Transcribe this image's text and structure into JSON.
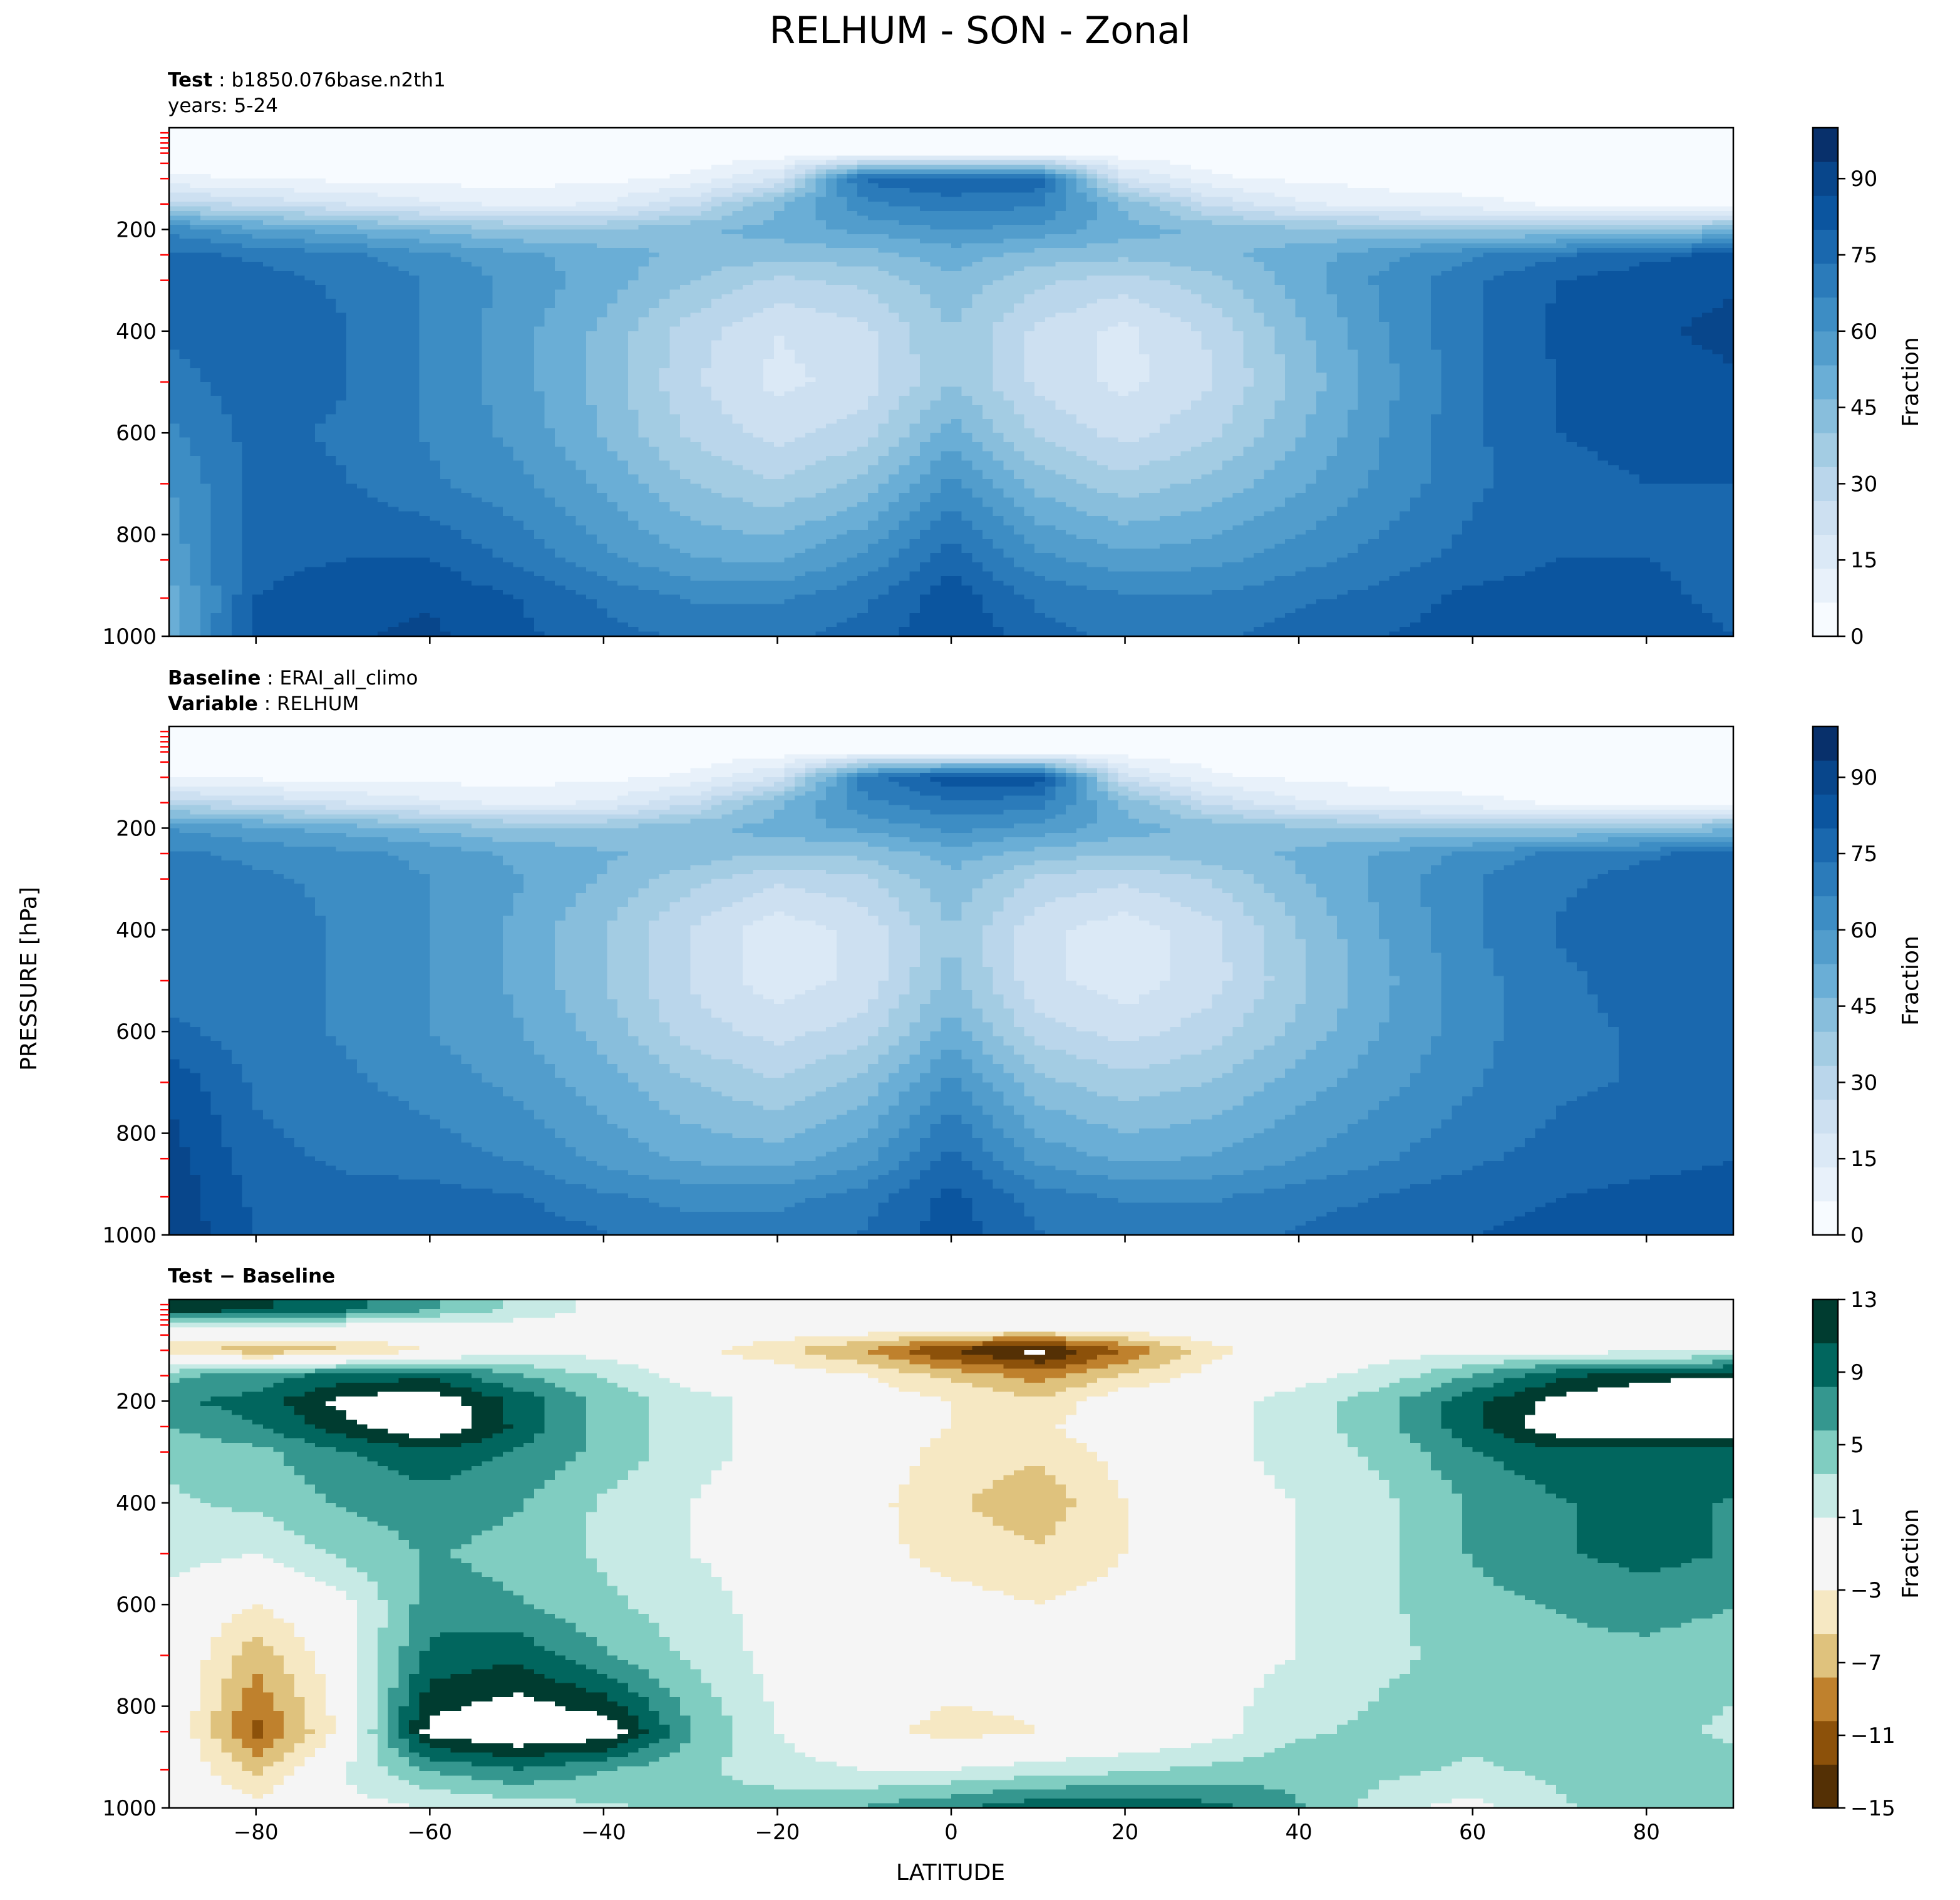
{
  "title": "RELHUM - SON - Zonal",
  "ylabel": "PRESSURE [hPa]",
  "xlabel": "LATITUDE",
  "colors": {
    "blues": [
      "#f7fbff",
      "#e8f1fa",
      "#dbe9f6",
      "#cde0f1",
      "#bad6eb",
      "#a3cce3",
      "#88bedc",
      "#6aaed6",
      "#529dcc",
      "#3d8dc4",
      "#2b7bba",
      "#1a68ae",
      "#0b559f",
      "#08468b",
      "#08306b"
    ],
    "brbg": [
      "#543005",
      "#8c510a",
      "#bf812d",
      "#dfc27d",
      "#f6e8c3",
      "#f5f5f5",
      "#c7eae5",
      "#80cdc1",
      "#35978f",
      "#01665e",
      "#003c30"
    ]
  },
  "chart_data": [
    {
      "type": "heatmap",
      "panel": "test",
      "label_key": "Test",
      "label_value": "b1850.076base.n2th1",
      "label_line2": "years: 5-24",
      "x_range": [
        -90,
        90
      ],
      "y_range": [
        1000,
        0
      ],
      "yticks": [
        200,
        400,
        600,
        800,
        1000
      ],
      "xticks": [
        -80,
        -60,
        -40,
        -20,
        0,
        20,
        40,
        60,
        80
      ],
      "show_xtick_labels": false,
      "colorbar": {
        "label": "Fraction",
        "range": [
          0,
          100
        ],
        "ticks": [
          0,
          15,
          30,
          45,
          60,
          75,
          90
        ]
      },
      "data_fields": {
        "lat": [
          -90,
          -80,
          -70,
          -60,
          -50,
          -40,
          -30,
          -20,
          -10,
          0,
          10,
          20,
          30,
          40,
          50,
          60,
          70,
          80,
          90
        ],
        "pressure": [
          50,
          100,
          150,
          200,
          250,
          300,
          400,
          500,
          600,
          700,
          850,
          925,
          1000
        ],
        "values": [
          [
            2,
            2,
            2,
            2,
            2,
            2,
            2,
            3,
            3,
            3,
            3,
            3,
            2,
            2,
            2,
            2,
            2,
            2,
            2
          ],
          [
            8,
            6,
            5,
            4,
            4,
            5,
            8,
            20,
            75,
            80,
            78,
            20,
            8,
            5,
            4,
            4,
            3,
            3,
            3
          ],
          [
            30,
            25,
            20,
            15,
            12,
            14,
            25,
            45,
            65,
            70,
            68,
            45,
            25,
            15,
            10,
            8,
            6,
            5,
            5
          ],
          [
            65,
            55,
            50,
            45,
            40,
            40,
            45,
            50,
            55,
            60,
            58,
            50,
            45,
            42,
            40,
            38,
            38,
            40,
            45
          ],
          [
            75,
            72,
            68,
            62,
            55,
            50,
            45,
            42,
            44,
            50,
            44,
            42,
            45,
            50,
            58,
            66,
            72,
            78,
            82
          ],
          [
            78,
            76,
            72,
            66,
            58,
            50,
            40,
            32,
            35,
            45,
            35,
            30,
            38,
            50,
            62,
            72,
            80,
            84,
            86
          ],
          [
            75,
            80,
            74,
            66,
            56,
            45,
            30,
            20,
            25,
            40,
            25,
            18,
            28,
            45,
            60,
            72,
            82,
            86,
            88
          ],
          [
            70,
            78,
            74,
            66,
            56,
            44,
            28,
            18,
            23,
            40,
            25,
            18,
            26,
            42,
            58,
            72,
            80,
            84,
            86
          ],
          [
            65,
            76,
            72,
            66,
            58,
            46,
            32,
            24,
            30,
            50,
            32,
            24,
            32,
            46,
            60,
            72,
            80,
            82,
            82
          ],
          [
            60,
            76,
            74,
            68,
            62,
            52,
            40,
            34,
            42,
            62,
            44,
            36,
            42,
            52,
            62,
            72,
            78,
            80,
            80
          ],
          [
            55,
            78,
            80,
            80,
            72,
            62,
            54,
            52,
            62,
            78,
            62,
            56,
            58,
            64,
            70,
            76,
            80,
            80,
            78
          ],
          [
            50,
            80,
            84,
            86,
            80,
            72,
            66,
            66,
            72,
            84,
            72,
            68,
            68,
            72,
            76,
            82,
            84,
            82,
            78
          ],
          [
            50,
            82,
            86,
            88,
            82,
            76,
            72,
            72,
            76,
            86,
            76,
            72,
            72,
            76,
            80,
            84,
            86,
            84,
            80
          ]
        ]
      }
    },
    {
      "type": "heatmap",
      "panel": "baseline",
      "label_key": "Baseline",
      "label_value": "ERAI_all_climo",
      "label_key2": "Variable",
      "label_value2": "RELHUM",
      "x_range": [
        -90,
        90
      ],
      "y_range": [
        1000,
        0
      ],
      "yticks": [
        200,
        400,
        600,
        800,
        1000
      ],
      "xticks": [
        -80,
        -60,
        -40,
        -20,
        0,
        20,
        40,
        60,
        80
      ],
      "show_xtick_labels": false,
      "colorbar": {
        "label": "Fraction",
        "range": [
          0,
          100
        ],
        "ticks": [
          0,
          15,
          30,
          45,
          60,
          75,
          90
        ]
      },
      "data_fields": {
        "lat": [
          -90,
          -80,
          -70,
          -60,
          -50,
          -40,
          -30,
          -20,
          -10,
          0,
          10,
          20,
          30,
          40,
          50,
          60,
          70,
          80,
          90
        ],
        "pressure": [
          50,
          100,
          150,
          200,
          250,
          300,
          400,
          500,
          600,
          700,
          850,
          925,
          1000
        ],
        "values": [
          [
            2,
            2,
            2,
            2,
            2,
            2,
            2,
            3,
            3,
            3,
            3,
            3,
            2,
            2,
            2,
            2,
            2,
            2,
            2
          ],
          [
            6,
            5,
            4,
            4,
            4,
            5,
            8,
            20,
            70,
            85,
            85,
            22,
            8,
            5,
            4,
            4,
            3,
            3,
            3
          ],
          [
            30,
            25,
            20,
            15,
            12,
            14,
            25,
            45,
            65,
            72,
            70,
            45,
            25,
            15,
            10,
            8,
            6,
            5,
            5
          ],
          [
            60,
            55,
            50,
            45,
            40,
            40,
            45,
            50,
            55,
            62,
            58,
            50,
            45,
            42,
            40,
            38,
            38,
            40,
            45
          ],
          [
            68,
            65,
            62,
            58,
            52,
            48,
            44,
            40,
            42,
            50,
            44,
            40,
            44,
            48,
            54,
            62,
            68,
            72,
            76
          ],
          [
            70,
            68,
            65,
            60,
            54,
            46,
            36,
            28,
            32,
            45,
            32,
            28,
            34,
            46,
            56,
            66,
            72,
            76,
            78
          ],
          [
            70,
            70,
            66,
            60,
            52,
            40,
            26,
            16,
            22,
            40,
            22,
            16,
            24,
            40,
            54,
            66,
            74,
            78,
            80
          ],
          [
            70,
            70,
            66,
            60,
            52,
            40,
            26,
            16,
            22,
            42,
            22,
            16,
            24,
            38,
            52,
            64,
            72,
            76,
            78
          ],
          [
            75,
            70,
            66,
            60,
            54,
            44,
            30,
            24,
            30,
            50,
            30,
            24,
            30,
            42,
            54,
            64,
            72,
            74,
            76
          ],
          [
            85,
            72,
            68,
            64,
            58,
            50,
            40,
            34,
            42,
            62,
            42,
            36,
            40,
            50,
            58,
            66,
            72,
            74,
            76
          ],
          [
            90,
            76,
            72,
            70,
            66,
            58,
            52,
            50,
            58,
            76,
            58,
            52,
            54,
            60,
            66,
            72,
            76,
            78,
            80
          ],
          [
            92,
            78,
            76,
            76,
            74,
            68,
            64,
            64,
            70,
            82,
            70,
            66,
            66,
            70,
            74,
            78,
            80,
            82,
            82
          ],
          [
            92,
            80,
            78,
            80,
            78,
            74,
            70,
            70,
            74,
            84,
            74,
            70,
            70,
            74,
            78,
            80,
            82,
            84,
            86
          ]
        ]
      }
    },
    {
      "type": "heatmap",
      "panel": "difference",
      "label_key": "Test − Baseline",
      "x_range": [
        -90,
        90
      ],
      "y_range": [
        1000,
        0
      ],
      "yticks": [
        200,
        400,
        600,
        800,
        1000
      ],
      "xticks": [
        -80,
        -60,
        -40,
        -20,
        0,
        20,
        40,
        60,
        80
      ],
      "show_xtick_labels": true,
      "colorbar": {
        "label": "Fraction",
        "range": [
          -15,
          13
        ],
        "ticks": [
          -15,
          -11,
          -7,
          -3,
          1,
          5,
          9,
          13
        ]
      },
      "data_fields": {
        "lat": [
          -90,
          -80,
          -70,
          -60,
          -50,
          -40,
          -30,
          -20,
          -10,
          0,
          10,
          20,
          30,
          40,
          50,
          60,
          70,
          80,
          90
        ],
        "pressure": [
          20,
          50,
          100,
          150,
          200,
          250,
          300,
          400,
          500,
          600,
          700,
          850,
          925,
          1000
        ],
        "values": [
          [
            12,
            11,
            9,
            6,
            3,
            0,
            0,
            0,
            0,
            0,
            0,
            0,
            0,
            0,
            0,
            0,
            0,
            0,
            0
          ],
          [
            2,
            2,
            1,
            0,
            0,
            0,
            0,
            0,
            0,
            0,
            0,
            0,
            0,
            0,
            0,
            0,
            0,
            0,
            0
          ],
          [
            -5,
            -7,
            -6,
            -3,
            0,
            0,
            -2,
            -5,
            -8,
            -13,
            -16,
            -10,
            -4,
            -1,
            0,
            0,
            0,
            0,
            0
          ],
          [
            5,
            7,
            9,
            10,
            6,
            3,
            0,
            -1,
            -3,
            -6,
            -9,
            -5,
            -2,
            0,
            2,
            6,
            10,
            12,
            13
          ],
          [
            8,
            9,
            14,
            15,
            10,
            5,
            2,
            0,
            -1,
            -3,
            -5,
            -1,
            0,
            2,
            5,
            10,
            14,
            16,
            16
          ],
          [
            6,
            8,
            12,
            16,
            10,
            5,
            2,
            0,
            -1,
            -3,
            -4,
            0,
            0,
            2,
            5,
            10,
            15,
            16,
            15
          ],
          [
            4,
            5,
            8,
            10,
            8,
            5,
            2,
            0,
            -1,
            -4,
            -5,
            -2,
            0,
            2,
            4,
            8,
            10,
            10,
            10
          ],
          [
            3,
            4,
            6,
            7,
            6,
            3,
            1,
            -1,
            -2,
            -5,
            -7,
            -3,
            0,
            1,
            3,
            6,
            8,
            9,
            8
          ],
          [
            2,
            1,
            4,
            6,
            5,
            3,
            1,
            0,
            -2,
            -4,
            -5,
            -3,
            -1,
            1,
            3,
            6,
            8,
            9,
            8
          ],
          [
            0,
            -3,
            0,
            7,
            6,
            4,
            2,
            0,
            -1,
            -2,
            -3,
            -2,
            -1,
            1,
            3,
            5,
            6,
            7,
            6
          ],
          [
            0,
            -7,
            -1,
            9,
            10,
            6,
            3,
            0,
            -1,
            -1,
            -2,
            -1,
            0,
            1,
            3,
            4,
            5,
            5,
            4
          ],
          [
            0,
            -11,
            -2,
            14,
            16,
            15,
            6,
            1,
            -2,
            -4,
            -3,
            -2,
            0,
            3,
            4,
            4,
            4,
            4,
            3
          ],
          [
            0,
            -6,
            1,
            6,
            8,
            6,
            4,
            2,
            1,
            1,
            2,
            3,
            4,
            5,
            4,
            3,
            4,
            5,
            4
          ],
          [
            0,
            -2,
            0,
            1,
            2,
            3,
            4,
            5,
            6,
            8,
            10,
            10,
            9,
            6,
            2,
            0,
            3,
            5,
            4
          ]
        ]
      }
    }
  ]
}
